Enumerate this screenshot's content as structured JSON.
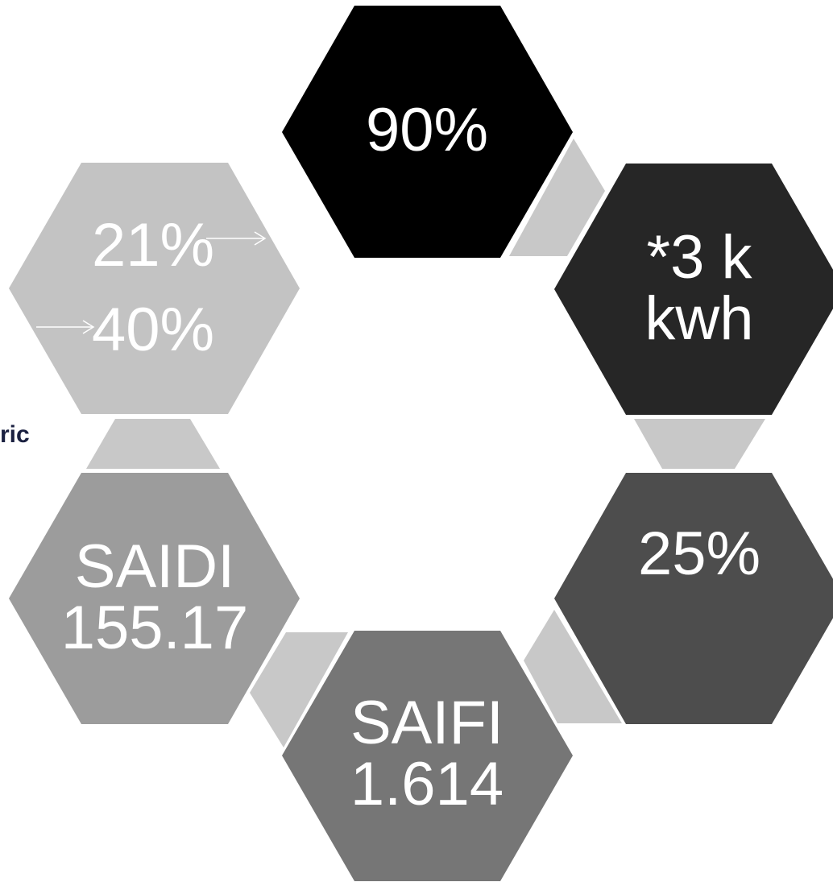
{
  "cycle": {
    "nodes": [
      {
        "id": "top",
        "lines": [
          "90%"
        ],
        "fill": "#000000"
      },
      {
        "id": "upper-right",
        "lines": [
          "*3 k",
          "kwh"
        ],
        "fill": "#262626"
      },
      {
        "id": "lower-right",
        "lines": [
          "25%"
        ],
        "fill": "#4d4d4d"
      },
      {
        "id": "bottom",
        "lines": [
          "SAIFI",
          "1.614"
        ],
        "fill": "#767676"
      },
      {
        "id": "lower-left",
        "lines": [
          "SAIDI",
          "155.17"
        ],
        "fill": "#9c9c9c"
      },
      {
        "id": "upper-left",
        "lines": [
          "21%",
          "40%"
        ],
        "fill": "#c3c3c3"
      }
    ],
    "connector_fill": "#c8c8c8"
  },
  "background_partial_text": "ric"
}
